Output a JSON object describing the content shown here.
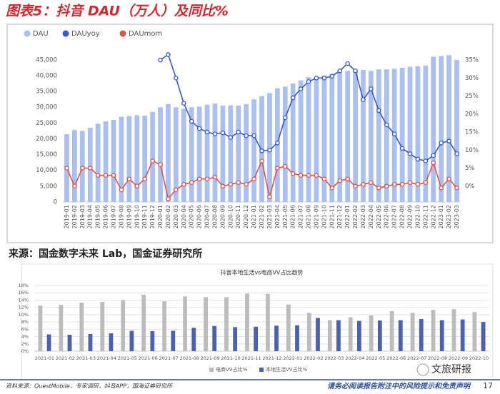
{
  "header": {
    "title": "图表5：抖音 DAU（万人）及同比%"
  },
  "chart_data": [
    {
      "type": "combo",
      "categories": [
        "2019-01",
        "2019-02",
        "2019-03",
        "2019-04",
        "2019-05",
        "2019-06",
        "2019-07",
        "2019-08",
        "2019-09",
        "2019-10",
        "2019-11",
        "2019-12",
        "2020-01",
        "2020-02",
        "2020-03",
        "2020-04",
        "2020-05",
        "2020-06",
        "2020-07",
        "2020-08",
        "2020-09",
        "2020-10",
        "2020-11",
        "2020-12",
        "2021-01",
        "2021-02",
        "2021-03",
        "2021-04",
        "2021-05",
        "2021-06",
        "2021-07",
        "2021-08",
        "2021-09",
        "2021-10",
        "2021-11",
        "2021-12",
        "2022-01",
        "2022-02",
        "2022-03",
        "2022-04",
        "2022-05",
        "2022-06",
        "2022-07",
        "2022-08",
        "2022-09",
        "2022-10",
        "2022-11",
        "2022-12",
        "2023-01",
        "2023-02",
        "2023-03"
      ],
      "series": [
        {
          "name": "DAU",
          "type": "bar",
          "color": "#a9c0f0",
          "values": [
            21500,
            22800,
            22500,
            23500,
            24800,
            25500,
            26000,
            27000,
            27200,
            27500,
            27300,
            28500,
            30000,
            31000,
            30000,
            29500,
            30000,
            30200,
            30800,
            31200,
            30500,
            30600,
            30500,
            31000,
            32500,
            33500,
            34500,
            36000,
            36500,
            37500,
            38500,
            39500,
            39500,
            40000,
            40500,
            41000,
            41500,
            41500,
            41800,
            41500,
            42000,
            42000,
            42200,
            42500,
            42800,
            43000,
            43200,
            46000,
            46200,
            46500,
            45000
          ]
        },
        {
          "name": "DAUyoy",
          "type": "line",
          "axis": "y2",
          "color": "#3557d6",
          "values": [
            null,
            null,
            null,
            null,
            null,
            null,
            null,
            null,
            null,
            null,
            null,
            null,
            35,
            36.5,
            30,
            23,
            18,
            16,
            15,
            14.5,
            14.8,
            13.5,
            15,
            14,
            14,
            9.8,
            10,
            12,
            19,
            24.5,
            27,
            29,
            30,
            30,
            30.5,
            32,
            34,
            32,
            24,
            27,
            21,
            17,
            14.5,
            10.5,
            9,
            7.5,
            7,
            8.5,
            12,
            12.5,
            9
          ]
        },
        {
          "name": "DAUmom",
          "type": "line",
          "axis": "y2",
          "color": "#e0524a",
          "values": [
            5,
            0,
            5,
            5,
            3,
            3,
            3,
            -1,
            2,
            0,
            2,
            7,
            6,
            -3.5,
            -1,
            0.5,
            1,
            2,
            2,
            2.5,
            0,
            0.5,
            1,
            0.5,
            2,
            7,
            -3,
            5,
            5.5,
            3.5,
            3,
            3,
            3,
            2,
            -0.5,
            1.5,
            2,
            0,
            0.5,
            1,
            -0.5,
            0,
            0.5,
            0.5,
            1,
            0.5,
            1,
            6.5,
            -0.5,
            2,
            -0.5
          ]
        }
      ],
      "ylim": [
        0,
        47000
      ],
      "yticks": [
        0,
        {
          "value": 5000,
          "label": "5,000"
        },
        {
          "value": 10000,
          "label": "10,000"
        },
        {
          "value": 15000,
          "label": "15,000"
        },
        {
          "value": 20000,
          "label": "20,000"
        },
        {
          "value": 25000,
          "label": "25,000"
        },
        {
          "value": 30000,
          "label": "30,000"
        },
        {
          "value": 35000,
          "label": "35,000"
        },
        {
          "value": 40000,
          "label": "40,000"
        },
        {
          "value": 45000,
          "label": "45,000"
        }
      ],
      "y2lim": [
        -4.4,
        36.8
      ],
      "y2ticks": [
        {
          "value": 0,
          "label": "0%"
        },
        {
          "value": 5,
          "label": "5%"
        },
        {
          "value": 10,
          "label": "10%"
        },
        {
          "value": 15,
          "label": "15%"
        },
        {
          "value": 20,
          "label": "20%"
        },
        {
          "value": 25,
          "label": "25%"
        },
        {
          "value": 30,
          "label": "30%"
        },
        {
          "value": 35,
          "label": "35%"
        }
      ],
      "grid": false
    },
    {
      "type": "bar",
      "title": "抖音本地生活vs电商VV占比趋势",
      "categories": [
        "2021-01",
        "2021-02",
        "2021-03",
        "2021-04",
        "2021-05",
        "2021-06",
        "2021-07",
        "2021-08",
        "2021-09",
        "2021-10",
        "2021-11",
        "2021-12",
        "2022-01",
        "2022-02",
        "2022-03",
        "2022-04",
        "2022-05",
        "2022-06",
        "2022-07",
        "2022-08",
        "2022-09",
        "2022-10"
      ],
      "series": [
        {
          "name": "电商VV占比%",
          "color": "#bcbcbc",
          "values": [
            12.5,
            12.7,
            13.3,
            13.5,
            14,
            15.5,
            13.7,
            15,
            14.8,
            14.8,
            15.8,
            15.7,
            12.8,
            10.5,
            8.5,
            9.3,
            9.8,
            11,
            10.5,
            11.3,
            11.5,
            10.7
          ]
        },
        {
          "name": "本地生活VV占比%",
          "color": "#4a62b0",
          "values": [
            4.6,
            4.5,
            4.7,
            4.9,
            5.6,
            5.5,
            5.6,
            6.4,
            6.9,
            6.6,
            6.7,
            7,
            7.1,
            9.1,
            8.5,
            8.3,
            8.4,
            8.5,
            8.8,
            8.5,
            8.7,
            8.0
          ]
        }
      ],
      "ylim": [
        0,
        18
      ],
      "yticks": [
        {
          "value": 0,
          "label": "0%"
        },
        {
          "value": 2,
          "label": "2%"
        },
        {
          "value": 4,
          "label": "4%"
        },
        {
          "value": 6,
          "label": "6%"
        },
        {
          "value": 8,
          "label": "8%"
        },
        {
          "value": 10,
          "label": "10%"
        },
        {
          "value": 12,
          "label": "12%"
        },
        {
          "value": 14,
          "label": "14%"
        },
        {
          "value": 16,
          "label": "16%"
        },
        {
          "value": 18,
          "label": "18%"
        }
      ],
      "grid": true
    }
  ],
  "source": "来源：国金数字未来 Lab，国金证券研究所",
  "footer": {
    "note": "资料来源：QuestMobile，专家调研，抖音APP，国海证券研究所",
    "disclaimer": "请务必阅读报告附注中的风险提示和免责声明",
    "page": "17",
    "badge": "文旅研报"
  }
}
